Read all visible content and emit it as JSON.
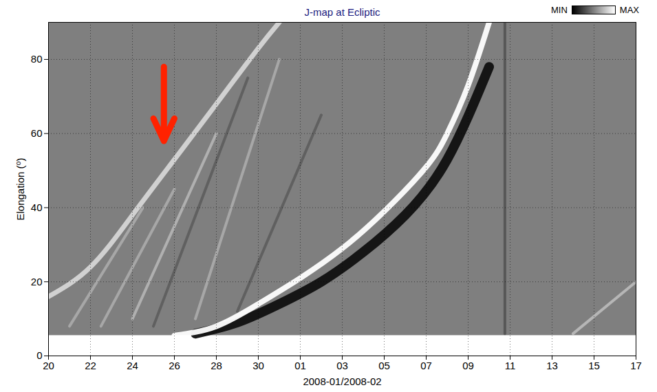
{
  "chart_data": {
    "type": "jmap",
    "title": "J-map at Ecliptic",
    "x_label": "2008-01/2008-02",
    "y_label": "Elongation (⁰)",
    "xlim": [
      "2008-01-20",
      "2008-02-17"
    ],
    "xticks": [
      {
        "value": "2008-01-20",
        "label": "20"
      },
      {
        "value": "2008-01-22",
        "label": "22"
      },
      {
        "value": "2008-01-24",
        "label": "24"
      },
      {
        "value": "2008-01-26",
        "label": "26"
      },
      {
        "value": "2008-01-28",
        "label": "28"
      },
      {
        "value": "2008-01-30",
        "label": "30"
      },
      {
        "value": "2008-02-01",
        "label": "01"
      },
      {
        "value": "2008-02-03",
        "label": "03"
      },
      {
        "value": "2008-02-05",
        "label": "05"
      },
      {
        "value": "2008-02-07",
        "label": "07"
      },
      {
        "value": "2008-02-09",
        "label": "09"
      },
      {
        "value": "2008-02-11",
        "label": "11"
      },
      {
        "value": "2008-02-13",
        "label": "13"
      },
      {
        "value": "2008-02-15",
        "label": "15"
      },
      {
        "value": "2008-02-17",
        "label": "17"
      }
    ],
    "ylim": [
      0,
      90
    ],
    "yticks": [
      0,
      20,
      40,
      60,
      80
    ],
    "grid": true,
    "data_elongation_range": [
      5.5,
      90
    ],
    "background_color": "#7f7f7f",
    "color_bar": {
      "labels": [
        "MIN",
        "MAX"
      ],
      "colors": [
        "#000000",
        "#ffffff"
      ]
    },
    "series": [
      {
        "color": "#d6d6d6",
        "x": [
          "2008-01-20",
          "2008-01-22",
          "2008-01-24",
          "2008-01-26",
          "2008-01-28",
          "2008-01-30",
          "2008-01-31"
        ],
        "values": [
          16,
          24,
          38,
          53,
          68,
          83,
          90
        ]
      },
      {
        "color": "#555555",
        "x": [
          "2008-01-25",
          "2008-01-29T12:00Z"
        ],
        "values": [
          8,
          75
        ]
      },
      {
        "color": "#b4b4b4",
        "x": [
          "2008-01-21",
          "2008-01-24T12:00Z"
        ],
        "values": [
          8,
          40
        ]
      },
      {
        "color": "#b4b4b4",
        "x": [
          "2008-01-22T12:00Z",
          "2008-01-26"
        ],
        "values": [
          8,
          45
        ]
      },
      {
        "color": "#c0c0c0",
        "x": [
          "2008-01-24",
          "2008-01-28"
        ],
        "values": [
          10,
          60
        ]
      },
      {
        "color": "#b4b4b4",
        "x": [
          "2008-01-27",
          "2008-01-31"
        ],
        "values": [
          10,
          80
        ]
      },
      {
        "color": "#555555",
        "x": [
          "2008-01-29",
          "2008-02-02"
        ],
        "values": [
          12,
          65
        ]
      },
      {
        "color": "#4a4a4a",
        "x": [
          "2008-02-10T18:00Z",
          "2008-02-10T18:00Z"
        ],
        "values": [
          6,
          90
        ]
      },
      {
        "color": "#c8c8c8",
        "x": [
          "2008-02-14",
          "2008-02-17"
        ],
        "values": [
          6,
          20
        ]
      },
      {
        "color": "#101010",
        "x": [
          "2008-01-27",
          "2008-01-29",
          "2008-01-31",
          "2008-02-02",
          "2008-02-04",
          "2008-02-06",
          "2008-02-08",
          "2008-02-10"
        ],
        "values": [
          6,
          9,
          14,
          20,
          28,
          38,
          53,
          78
        ]
      },
      {
        "color": "#ffffff",
        "x": [
          "2008-01-26",
          "2008-01-28",
          "2008-01-30",
          "2008-02-01",
          "2008-02-03",
          "2008-02-05",
          "2008-02-07",
          "2008-02-08",
          "2008-02-09",
          "2008-02-10"
        ],
        "values": [
          5.5,
          8,
          14,
          21,
          29,
          39,
          51,
          60,
          73,
          90
        ]
      }
    ],
    "annotations": [
      {
        "type": "arrow",
        "color": "#ff2200",
        "x": "2008-01-25T12:00Z",
        "y_from": 78,
        "y_to": 58
      }
    ]
  }
}
